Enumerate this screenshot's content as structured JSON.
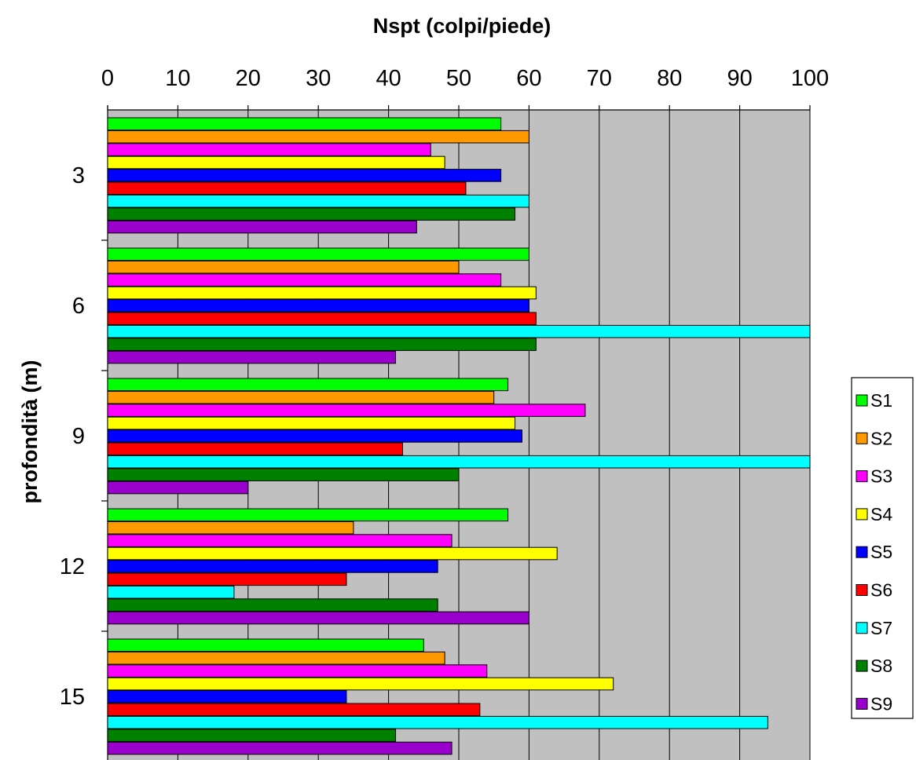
{
  "chart_data": {
    "type": "bar",
    "orientation": "horizontal",
    "title": "Nspt (colpi/piede)",
    "xlabel": "Nspt (colpi/piede)",
    "ylabel": "profondità (m)",
    "xlim": [
      0,
      100
    ],
    "x_ticks": [
      "0",
      "10",
      "20",
      "30",
      "40",
      "50",
      "60",
      "70",
      "80",
      "90",
      "100"
    ],
    "x_axis_position": "top",
    "grid": true,
    "plot_background": "#c0c0c0",
    "legend_position": "right",
    "categories": [
      "3",
      "6",
      "9",
      "12",
      "15"
    ],
    "series": [
      {
        "name": "S1",
        "color": "#00ff00",
        "values": [
          56,
          60,
          57,
          57,
          45
        ]
      },
      {
        "name": "S2",
        "color": "#ff9900",
        "values": [
          60,
          50,
          55,
          35,
          48
        ]
      },
      {
        "name": "S3",
        "color": "#ff00ff",
        "values": [
          46,
          56,
          68,
          49,
          54
        ]
      },
      {
        "name": "S4",
        "color": "#ffff00",
        "values": [
          48,
          61,
          58,
          64,
          72
        ]
      },
      {
        "name": "S5",
        "color": "#0000ff",
        "values": [
          56,
          60,
          59,
          47,
          34
        ]
      },
      {
        "name": "S6",
        "color": "#ff0000",
        "values": [
          51,
          61,
          42,
          34,
          53
        ]
      },
      {
        "name": "S7",
        "color": "#00ffff",
        "values": [
          60,
          100,
          100,
          18,
          94
        ]
      },
      {
        "name": "S8",
        "color": "#008000",
        "values": [
          58,
          61,
          50,
          47,
          41
        ]
      },
      {
        "name": "S9",
        "color": "#9900cc",
        "values": [
          44,
          41,
          20,
          60,
          49
        ]
      }
    ]
  }
}
